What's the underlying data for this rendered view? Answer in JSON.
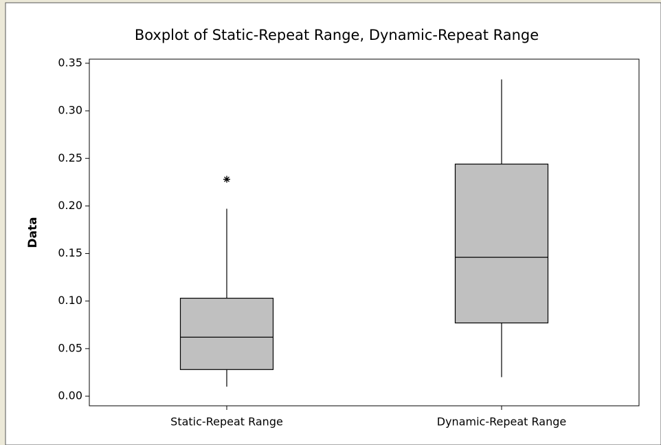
{
  "chart_data": {
    "type": "boxplot",
    "title": "Boxplot of Static-Repeat Range, Dynamic-Repeat Range",
    "ylabel": "Data",
    "categories": [
      "Static-Repeat Range",
      "Dynamic-Repeat Range"
    ],
    "boxes": [
      {
        "min": 0.01,
        "q1": 0.028,
        "median": 0.062,
        "q3": 0.103,
        "max": 0.197,
        "outliers": [
          0.228
        ]
      },
      {
        "min": 0.02,
        "q1": 0.077,
        "median": 0.146,
        "q3": 0.244,
        "max": 0.333,
        "outliers": []
      }
    ],
    "color": "#c0c0c0",
    "ylim": [
      -0.0101,
      0.3543
    ],
    "yticks": [
      {
        "value": 0,
        "label": "0.00"
      },
      {
        "value": 0.05,
        "label": "0.05"
      },
      {
        "value": 0.1,
        "label": "0.10"
      },
      {
        "value": 0.15,
        "label": "0.15"
      },
      {
        "value": 0.2,
        "label": "0.20"
      },
      {
        "value": 0.25,
        "label": "0.25"
      },
      {
        "value": 0.3,
        "label": "0.30"
      },
      {
        "value": 0.35,
        "label": "0.35"
      }
    ]
  }
}
